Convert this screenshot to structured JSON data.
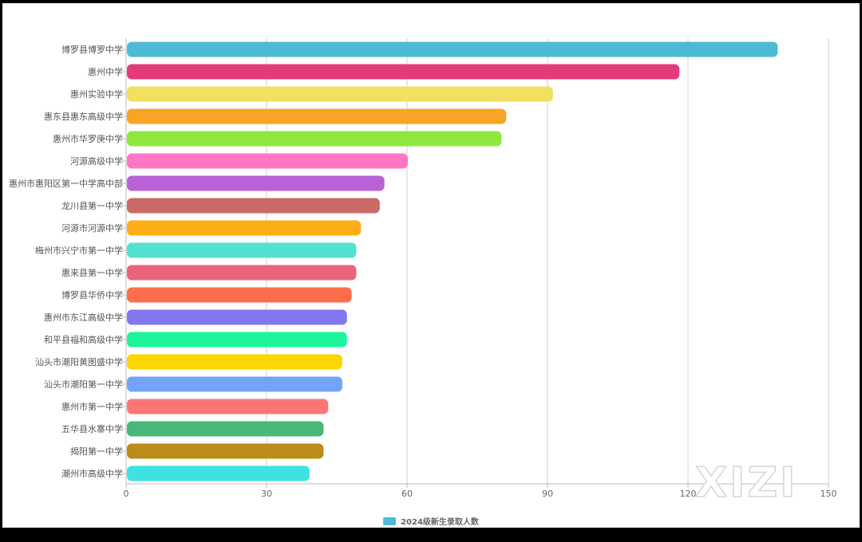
{
  "chart_data": {
    "type": "bar",
    "orientation": "horizontal",
    "title": "",
    "xlabel": "",
    "ylabel": "",
    "xlim": [
      0,
      150
    ],
    "x_ticks": [
      "0",
      "30",
      "60",
      "90",
      "120",
      "150"
    ],
    "grid": true,
    "legend_position": "bottom-center",
    "categories": [
      "博罗县博罗中学",
      "惠州中学",
      "惠州实验中学",
      "惠东县惠东高级中学",
      "惠州市华罗庚中学",
      "河源高级中学",
      "惠州市惠阳区第一中学高中部",
      "龙川县第一中学",
      "河源市河源中学",
      "梅州市兴宁市第一中学",
      "惠来县第一中学",
      "博罗县华侨中学",
      "惠州市东江高级中学",
      "和平县福和高级中学",
      "汕头市潮阳黄图盛中学",
      "汕头市潮阳第一中学",
      "惠州市第一中学",
      "五华县水寨中学",
      "揭阳第一中学",
      "潮州市高级中学"
    ],
    "series": [
      {
        "name": "2024级新生录取人数",
        "values": [
          139,
          118,
          91,
          81,
          80,
          60,
          55,
          54,
          50,
          49,
          49,
          48,
          47,
          47,
          46,
          46,
          43,
          42,
          42,
          39
        ]
      }
    ],
    "colors": [
      "#4fbad5",
      "#e43a7a",
      "#f2e05e",
      "#f7a427",
      "#8fe83d",
      "#ff77c4",
      "#b962d5",
      "#c96a66",
      "#fdae16",
      "#53e1cf",
      "#e9647b",
      "#ff6e4c",
      "#8377ed",
      "#1df59a",
      "#fcd600",
      "#72a3f6",
      "#fd7575",
      "#47b77a",
      "#bb8c1a",
      "#3ee2e2"
    ],
    "legend_color": "#4fbad5"
  },
  "watermark": "XIZI"
}
